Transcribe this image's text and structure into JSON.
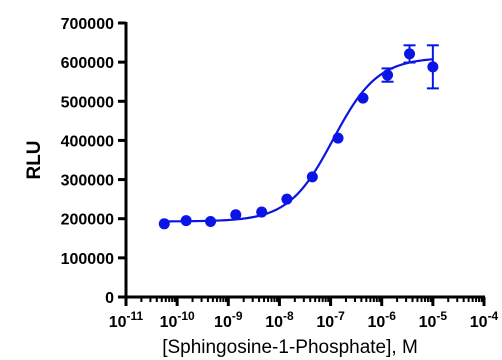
{
  "chart_data": {
    "type": "scatter",
    "title": "",
    "xlabel": "[Sphingosine-1-Phosphate], M",
    "ylabel": "RLU",
    "x_scale": "log10",
    "xlim": [
      1e-11,
      0.0001
    ],
    "ylim": [
      0,
      700000
    ],
    "y_ticks": [
      "0",
      "100000",
      "200000",
      "300000",
      "400000",
      "500000",
      "600000",
      "700000"
    ],
    "x_ticks": [
      {
        "base": "10",
        "exp": "-11"
      },
      {
        "base": "10",
        "exp": "-10"
      },
      {
        "base": "10",
        "exp": "-9"
      },
      {
        "base": "10",
        "exp": "-8"
      },
      {
        "base": "10",
        "exp": "-7"
      },
      {
        "base": "10",
        "exp": "-6"
      },
      {
        "base": "10",
        "exp": "-5"
      },
      {
        "base": "10",
        "exp": "-4"
      }
    ],
    "color": "#0a14e6",
    "grid": false,
    "series": [
      {
        "points": [
          {
            "x": 5.6e-11,
            "y": 187000,
            "err": 0
          },
          {
            "x": 1.5e-10,
            "y": 195000,
            "err": 0
          },
          {
            "x": 4.5e-10,
            "y": 193000,
            "err": 0
          },
          {
            "x": 1.4e-09,
            "y": 210000,
            "err": 0
          },
          {
            "x": 4.5e-09,
            "y": 217000,
            "err": 0
          },
          {
            "x": 1.4e-08,
            "y": 250000,
            "err": 0
          },
          {
            "x": 4.4e-08,
            "y": 307000,
            "err": 0
          },
          {
            "x": 1.4e-07,
            "y": 406000,
            "err": 0
          },
          {
            "x": 4.3e-07,
            "y": 508000,
            "err": 0
          },
          {
            "x": 1.3e-06,
            "y": 567000,
            "err": 17000
          },
          {
            "x": 3.5e-06,
            "y": 621000,
            "err": 22000
          },
          {
            "x": 1e-05,
            "y": 588000,
            "err": 55000
          }
        ]
      }
    ],
    "fit": {
      "model": "four-parameter logistic",
      "bottom": 193000,
      "top": 612000,
      "log_ec50": -6.95,
      "hill": 1.0,
      "x_from": 5.6e-11,
      "x_to": 1e-05
    }
  }
}
